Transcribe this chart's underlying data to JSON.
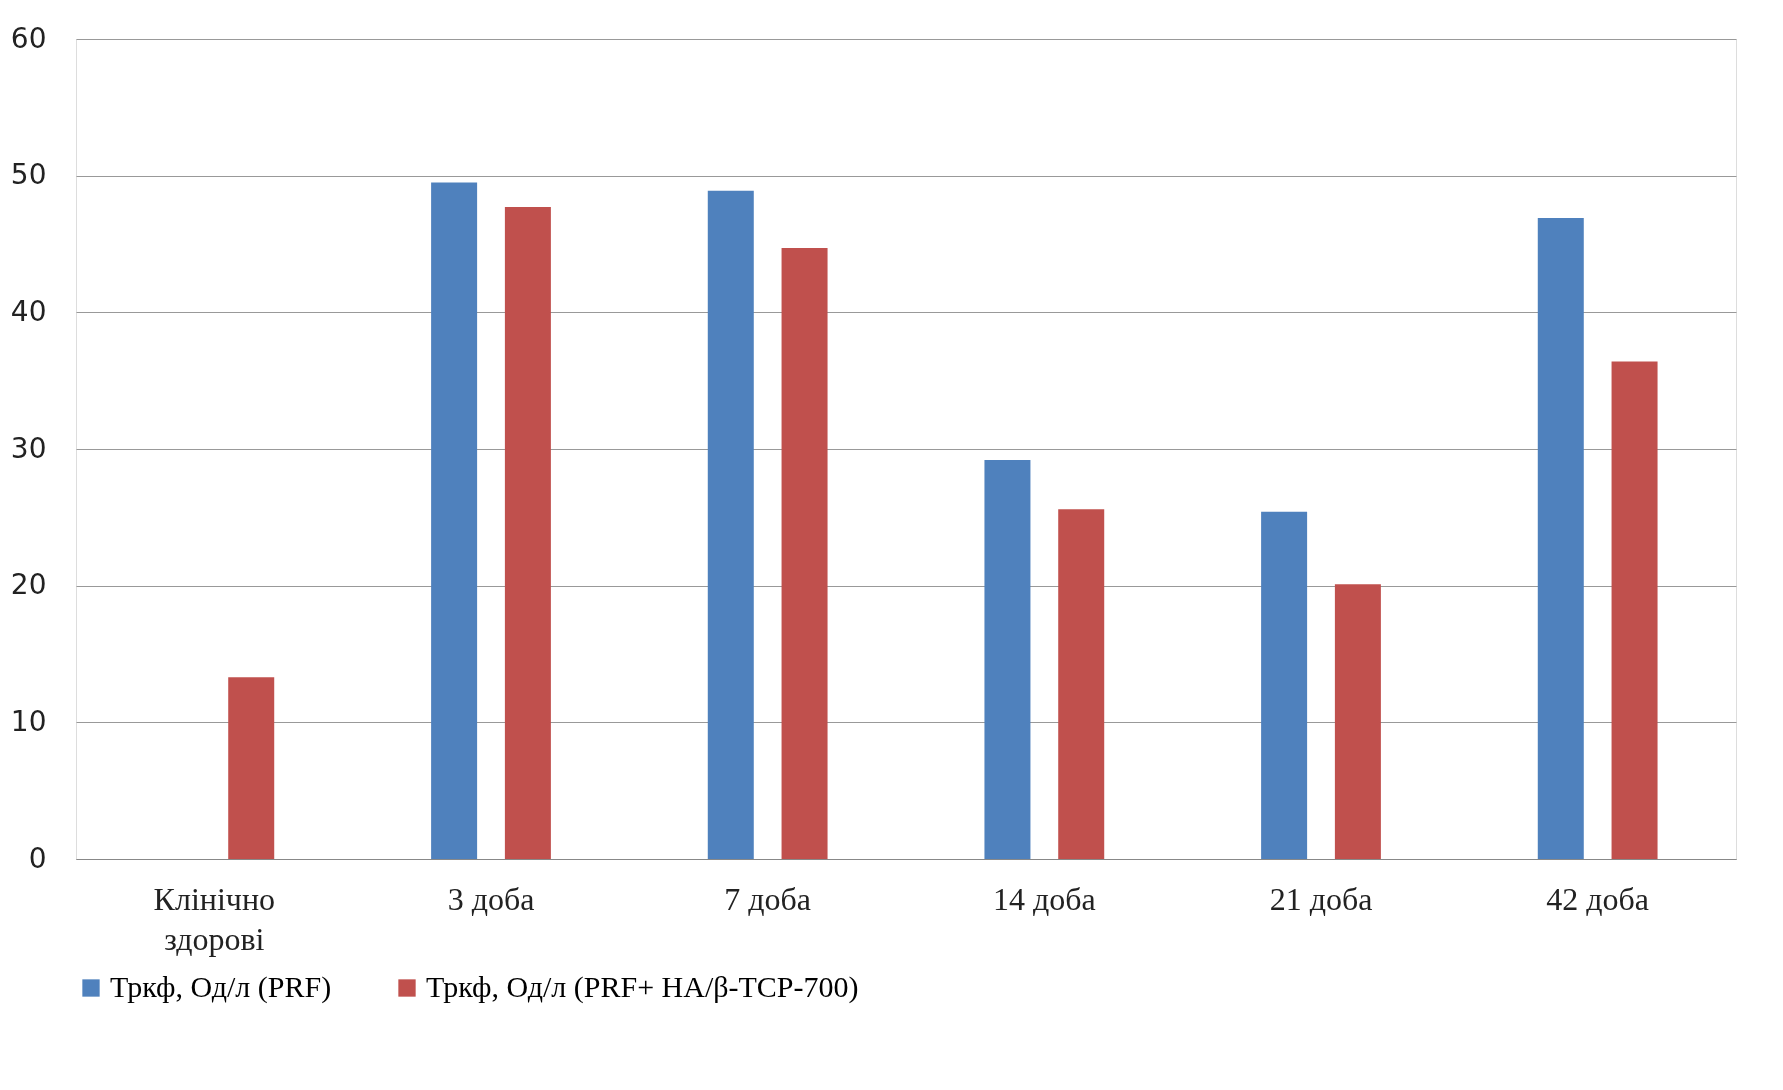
{
  "chart_data": {
    "type": "bar",
    "categories": [
      "Клінічно здорові",
      "3 доба",
      "7 доба",
      "14 доба",
      "21 доба",
      "42 доба"
    ],
    "series": [
      {
        "name": "Тркф, Од/л (PRF)",
        "color": "#4f81bd",
        "values": [
          null,
          49.5,
          48.9,
          29.2,
          25.4,
          46.9
        ]
      },
      {
        "name": "Тркф, Од/л (PRF+ HA/β-TCP-700)",
        "color": "#c0504d",
        "values": [
          13.3,
          47.7,
          44.7,
          25.6,
          20.1,
          36.4
        ]
      }
    ],
    "ylim": [
      0,
      60
    ],
    "yticks": [
      0,
      10,
      20,
      30,
      40,
      50,
      60
    ],
    "grid": "y",
    "legend": "bottom"
  }
}
